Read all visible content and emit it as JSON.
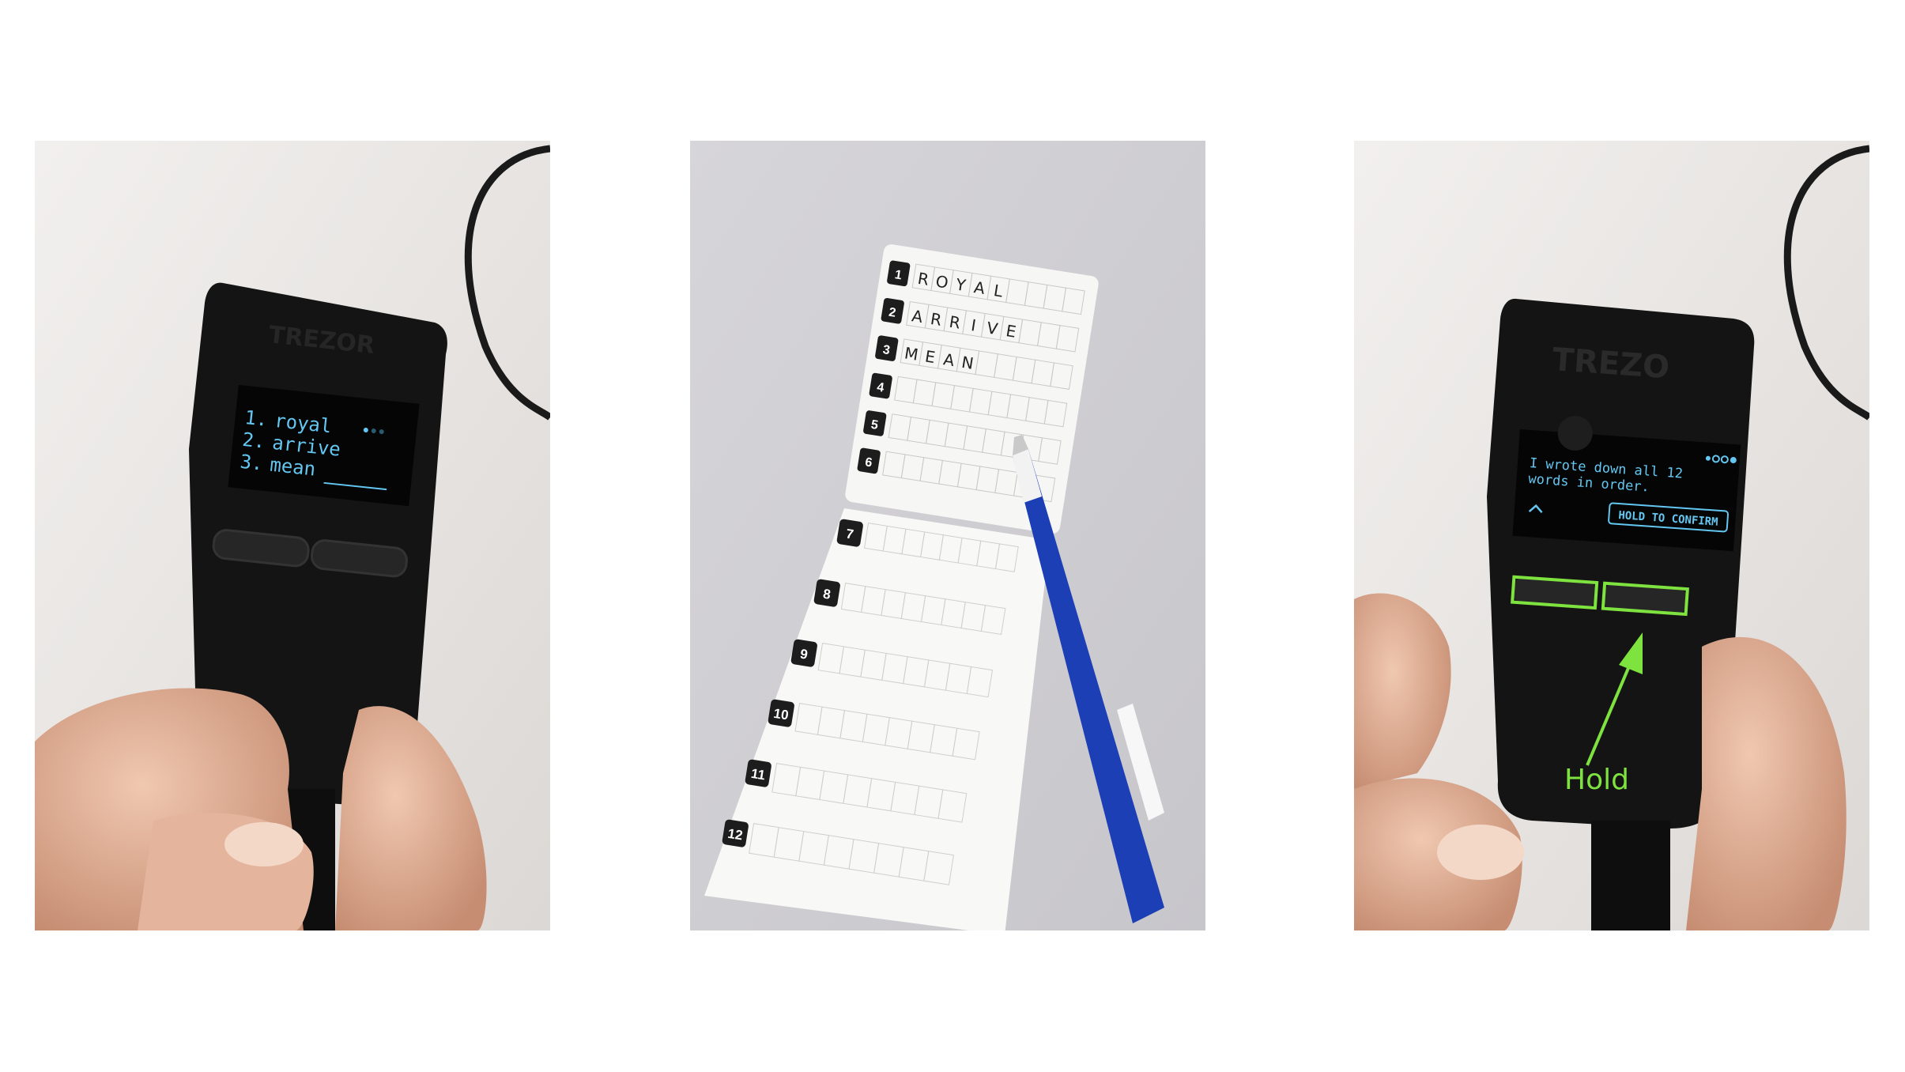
{
  "colors": {
    "background": "#2a6249",
    "screen_text": "#63c7f2",
    "highlight": "#7ee23f",
    "arrow": "#ffffff",
    "pen_blue": "#1c3fb6"
  },
  "panel1": {
    "brand": "TREZOR",
    "screen_lines": [
      {
        "num": "1.",
        "word": "royal"
      },
      {
        "num": "2.",
        "word": "arrive"
      },
      {
        "num": "3.",
        "word": "mean"
      }
    ]
  },
  "panel2": {
    "card_rows": [
      {
        "num": "1",
        "word": "ROYAL"
      },
      {
        "num": "2",
        "word": "ARRIVE"
      },
      {
        "num": "3",
        "word": "MEAN"
      },
      {
        "num": "4",
        "word": ""
      },
      {
        "num": "5",
        "word": ""
      },
      {
        "num": "6",
        "word": ""
      },
      {
        "num": "7",
        "word": ""
      },
      {
        "num": "8",
        "word": ""
      },
      {
        "num": "9",
        "word": ""
      },
      {
        "num": "10",
        "word": ""
      },
      {
        "num": "11",
        "word": ""
      },
      {
        "num": "12",
        "word": ""
      }
    ]
  },
  "panel3": {
    "brand": "TREZO",
    "screen_line_1": "I wrote down all 12",
    "screen_line_2": "words in order.",
    "confirm_button": "HOLD TO CONFIRM",
    "annotation": "Hold"
  },
  "icons": {
    "arrow_1": "arrow-right-icon",
    "arrow_2": "arrow-right-icon",
    "screen_up": "chevron-up-icon",
    "highlight_arrow": "arrow-up-right-icon"
  }
}
